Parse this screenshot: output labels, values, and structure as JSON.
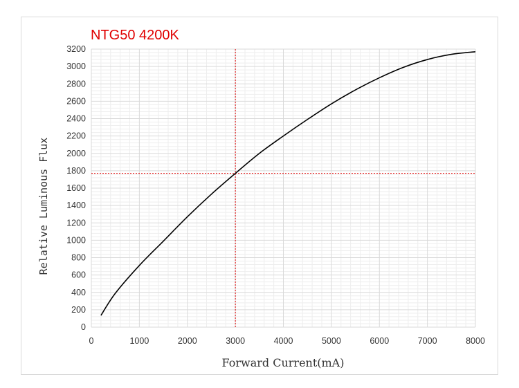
{
  "chart_data": {
    "type": "line",
    "title": "NTG50 4200K",
    "xlabel": "Forward Current(mA)",
    "ylabel": "Relative Luminous Flux",
    "xlim": [
      0,
      8000
    ],
    "ylim": [
      0,
      3200
    ],
    "x_major_step": 1000,
    "y_major_step": 200,
    "x_ticks": [
      "0",
      "1000",
      "2000",
      "3000",
      "4000",
      "5000",
      "6000",
      "7000",
      "8000"
    ],
    "y_ticks": [
      "0",
      "200",
      "400",
      "600",
      "800",
      "1000",
      "1200",
      "1400",
      "1600",
      "1800",
      "2000",
      "2200",
      "2400",
      "2600",
      "2800",
      "3000",
      "3200"
    ],
    "grid": true,
    "series": [
      {
        "color": "#000000",
        "x": [
          200,
          500,
          1000,
          1500,
          2000,
          2500,
          3000,
          3500,
          4000,
          4500,
          5000,
          5500,
          6000,
          6500,
          7000,
          7500,
          8000
        ],
        "y": [
          135,
          390,
          710,
          990,
          1270,
          1530,
          1770,
          2000,
          2200,
          2390,
          2570,
          2730,
          2870,
          2990,
          3080,
          3140,
          3170
        ]
      }
    ],
    "reference_point": {
      "x": 3000,
      "y": 1770,
      "color": "#e00000"
    }
  },
  "colors": {
    "title": "#e00000",
    "reference_lines": "#e00000",
    "curve": "#000000",
    "major_grid": "#d9d9d9",
    "minor_grid": "#eeeeee"
  }
}
